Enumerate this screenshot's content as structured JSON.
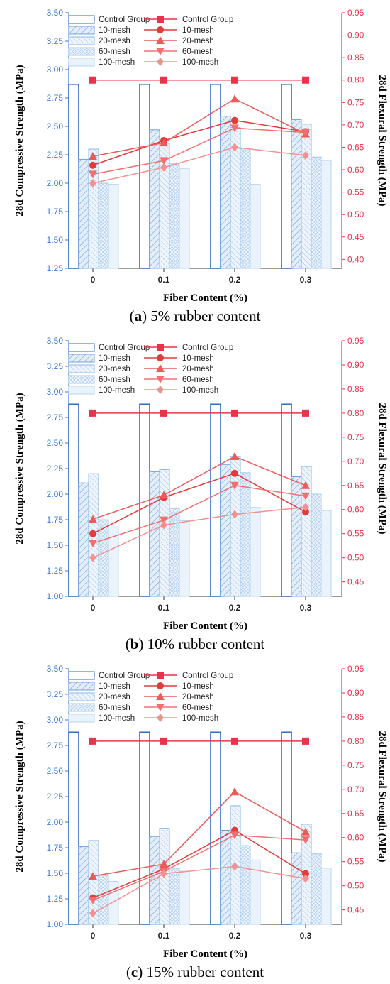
{
  "colors": {
    "left_axis": "#3a7bd5",
    "right_axis": "#e8344a",
    "bar_stroke": "#4a90d9",
    "bar_fill_light": "#eaf2fb",
    "line_control": "#e8344a",
    "line_10": "#e53a3a",
    "line_20": "#ec5a5a",
    "line_60": "#f07070",
    "line_100": "#f49090"
  },
  "legend": {
    "bars": [
      "Control Group",
      "10-mesh",
      "20-mesh",
      "60-mesh",
      "100-mesh"
    ],
    "lines": [
      "Control Group",
      "10-mesh",
      "20-mesh",
      "60-mesh",
      "100-mesh"
    ]
  },
  "chart_data": [
    {
      "type": "bar",
      "panel_label": "a",
      "caption": "5% rubber content",
      "xlabel": "Fiber Content (%)",
      "ylabel_left": "28d Compressive Strength (MPa)",
      "ylabel_right": "28d Flexural Strength (MPa)",
      "categories": [
        "0",
        "0.1",
        "0.2",
        "0.3"
      ],
      "ylim_left": [
        1.25,
        3.5
      ],
      "yticks_left": [
        "1.25",
        "1.50",
        "1.75",
        "2.00",
        "2.25",
        "2.50",
        "2.75",
        "3.00",
        "3.25",
        "3.50"
      ],
      "ylim_right": [
        0.38,
        0.95
      ],
      "yticks_right": [
        "0.40",
        "0.45",
        "0.50",
        "0.55",
        "0.60",
        "0.65",
        "0.70",
        "0.75",
        "0.80",
        "0.85",
        "0.90",
        "0.95"
      ],
      "bar_series": [
        {
          "name": "Control Group",
          "values": [
            2.87,
            2.87,
            2.87,
            2.87
          ]
        },
        {
          "name": "10-mesh",
          "values": [
            2.21,
            2.47,
            2.59,
            2.56
          ]
        },
        {
          "name": "20-mesh",
          "values": [
            2.3,
            2.35,
            2.49,
            2.52
          ]
        },
        {
          "name": "60-mesh",
          "values": [
            2.0,
            2.17,
            2.31,
            2.23
          ]
        },
        {
          "name": "100-mesh",
          "values": [
            1.99,
            2.13,
            1.99,
            2.2
          ]
        }
      ],
      "line_series": [
        {
          "name": "Control Group",
          "values": [
            0.8,
            0.8,
            0.8,
            0.8
          ]
        },
        {
          "name": "10-mesh",
          "values": [
            0.61,
            0.665,
            0.71,
            0.685
          ]
        },
        {
          "name": "20-mesh",
          "values": [
            0.63,
            0.66,
            0.758,
            0.68
          ]
        },
        {
          "name": "60-mesh",
          "values": [
            0.59,
            0.62,
            0.693,
            0.683
          ]
        },
        {
          "name": "100-mesh",
          "values": [
            0.57,
            0.605,
            0.65,
            0.632
          ]
        }
      ]
    },
    {
      "type": "bar",
      "panel_label": "b",
      "caption": "10% rubber content",
      "xlabel": "Fiber Content (%)",
      "ylabel_left": "28d Compressive Strength (MPa)",
      "ylabel_right": "28d Flexural Strength (MPa)",
      "categories": [
        "0",
        "0.1",
        "0.2",
        "0.3"
      ],
      "ylim_left": [
        1.0,
        3.5
      ],
      "yticks_left": [
        "1.00",
        "1.25",
        "1.50",
        "1.75",
        "2.00",
        "2.25",
        "2.50",
        "2.75",
        "3.00",
        "3.25",
        "3.50"
      ],
      "ylim_right": [
        0.42,
        0.95
      ],
      "yticks_right": [
        "0.45",
        "0.50",
        "0.55",
        "0.60",
        "0.65",
        "0.70",
        "0.75",
        "0.80",
        "0.85",
        "0.90",
        "0.95"
      ],
      "bar_series": [
        {
          "name": "Control Group",
          "values": [
            2.88,
            2.88,
            2.88,
            2.88
          ]
        },
        {
          "name": "10-mesh",
          "values": [
            2.11,
            2.22,
            2.29,
            2.17
          ]
        },
        {
          "name": "20-mesh",
          "values": [
            2.2,
            2.24,
            2.37,
            2.27
          ]
        },
        {
          "name": "60-mesh",
          "values": [
            1.75,
            1.86,
            2.21,
            2.0
          ]
        },
        {
          "name": "100-mesh",
          "values": [
            1.68,
            1.74,
            1.87,
            1.84
          ]
        }
      ],
      "line_series": [
        {
          "name": "Control Group",
          "values": [
            0.8,
            0.8,
            0.8,
            0.8
          ]
        },
        {
          "name": "10-mesh",
          "values": [
            0.55,
            0.625,
            0.675,
            0.595
          ]
        },
        {
          "name": "20-mesh",
          "values": [
            0.58,
            0.63,
            0.71,
            0.65
          ]
        },
        {
          "name": "60-mesh",
          "values": [
            0.53,
            0.578,
            0.65,
            0.628
          ]
        },
        {
          "name": "100-mesh",
          "values": [
            0.5,
            0.568,
            0.59,
            0.605
          ]
        }
      ]
    },
    {
      "type": "bar",
      "panel_label": "c",
      "caption": "15% rubber content",
      "xlabel": "Fiber Content (%)",
      "ylabel_left": "28d Compressive Strength (MPa)",
      "ylabel_right": "28d Flexural Strength (MPa)",
      "categories": [
        "0",
        "0.1",
        "0.2",
        "0.3"
      ],
      "ylim_left": [
        1.0,
        3.5
      ],
      "yticks_left": [
        "1.00",
        "1.25",
        "1.50",
        "1.75",
        "2.00",
        "2.25",
        "2.50",
        "2.75",
        "3.00",
        "3.25",
        "3.50"
      ],
      "ylim_right": [
        0.42,
        0.95
      ],
      "yticks_right": [
        "0.45",
        "0.50",
        "0.55",
        "0.60",
        "0.65",
        "0.70",
        "0.75",
        "0.80",
        "0.85",
        "0.90",
        "0.95"
      ],
      "bar_series": [
        {
          "name": "Control Group",
          "values": [
            2.88,
            2.88,
            2.88,
            2.88
          ]
        },
        {
          "name": "10-mesh",
          "values": [
            1.76,
            1.86,
            1.92,
            1.7
          ]
        },
        {
          "name": "20-mesh",
          "values": [
            1.82,
            1.94,
            2.16,
            1.98
          ]
        },
        {
          "name": "60-mesh",
          "values": [
            1.48,
            1.55,
            1.77,
            1.69
          ]
        },
        {
          "name": "100-mesh",
          "values": [
            1.42,
            1.52,
            1.63,
            1.55
          ]
        }
      ],
      "line_series": [
        {
          "name": "Control Group",
          "values": [
            0.8,
            0.8,
            0.8,
            0.8
          ]
        },
        {
          "name": "10-mesh",
          "values": [
            0.475,
            0.535,
            0.615,
            0.525
          ]
        },
        {
          "name": "20-mesh",
          "values": [
            0.52,
            0.545,
            0.695,
            0.612
          ]
        },
        {
          "name": "60-mesh",
          "values": [
            0.47,
            0.53,
            0.605,
            0.595
          ]
        },
        {
          "name": "100-mesh",
          "values": [
            0.443,
            0.525,
            0.54,
            0.515
          ]
        }
      ]
    }
  ]
}
